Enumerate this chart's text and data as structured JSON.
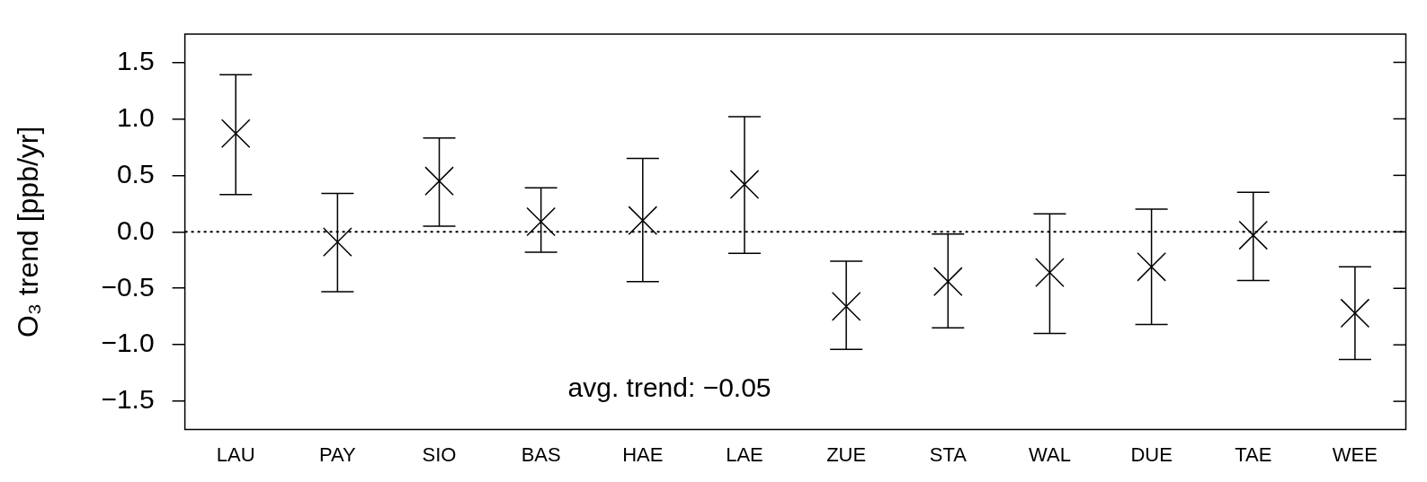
{
  "chart_data": {
    "type": "scatter",
    "ylabel": "O₃ trend [ppb/yr]",
    "categories": [
      "LAU",
      "PAY",
      "SIO",
      "BAS",
      "HAE",
      "LAE",
      "ZUE",
      "STA",
      "WAL",
      "DUE",
      "TAE",
      "WEE"
    ],
    "values": [
      0.87,
      -0.09,
      0.45,
      0.09,
      0.1,
      0.42,
      -0.66,
      -0.44,
      -0.36,
      -0.31,
      -0.03,
      -0.72
    ],
    "errors": [
      [
        0.33,
        1.39
      ],
      [
        -0.53,
        0.34
      ],
      [
        0.05,
        0.83
      ],
      [
        -0.18,
        0.39
      ],
      [
        -0.44,
        0.65
      ],
      [
        -0.19,
        1.02
      ],
      [
        -1.04,
        -0.26
      ],
      [
        -0.85,
        -0.02
      ],
      [
        -0.9,
        0.16
      ],
      [
        -0.82,
        0.2
      ],
      [
        -0.43,
        0.35
      ],
      [
        -1.13,
        -0.31
      ]
    ],
    "color": "#000000",
    "marker": "cross",
    "ylim": [
      -1.75,
      1.75
    ],
    "yticks": [
      {
        "value": -1.5,
        "label": "−1.5"
      },
      {
        "value": -1,
        "label": "−1.0"
      },
      {
        "value": -0.5,
        "label": "−0.5"
      },
      {
        "value": 0,
        "label": "0.0"
      },
      {
        "value": 0.5,
        "label": "0.5"
      },
      {
        "value": 1,
        "label": "1.0"
      },
      {
        "value": 1.5,
        "label": "1.5"
      }
    ],
    "ref_lines": [
      {
        "axis": "y",
        "value": 0,
        "line_style": "dotted",
        "color": "#000000"
      }
    ],
    "annotations": [
      "avg. trend: −0.05"
    ],
    "grid": false,
    "legend": false
  }
}
